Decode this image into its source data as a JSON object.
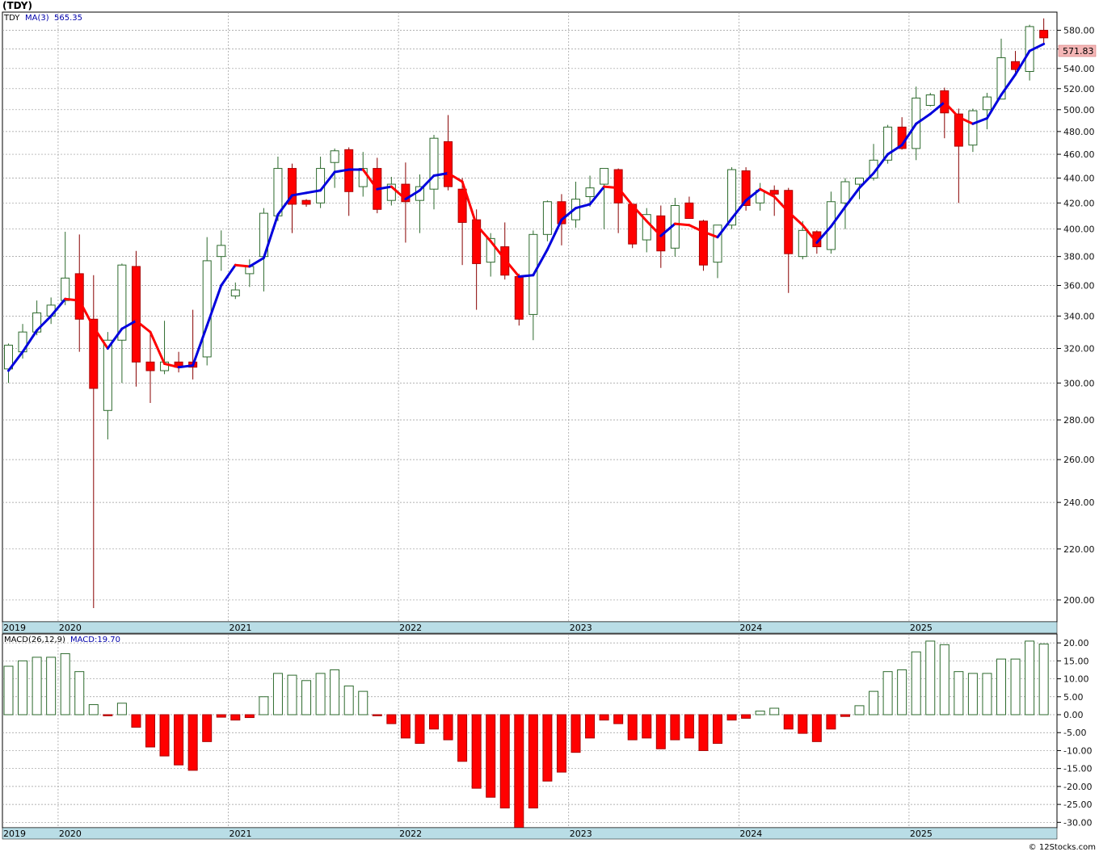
{
  "title": "(TDY)",
  "watermark": "© 12Stocks.com",
  "colors": {
    "up_candle": "#2d6a2d",
    "down_candle": "#ff0000",
    "ma_up": "#0000dd",
    "ma_down": "#ff0000",
    "grid": "#999999",
    "year_band": "#b9dde6",
    "last_price_box": "#f4b6b6"
  },
  "chart_data": [
    {
      "type": "candlestick",
      "interval": "monthly",
      "symbol": "TDY",
      "legend": {
        "symbol": "TDY",
        "ma_label": "MA(3)",
        "ma_value": "565.35"
      },
      "scale": "log",
      "ylim": [
        192,
        600
      ],
      "y_ticks": [
        200,
        220,
        240,
        260,
        280,
        300,
        320,
        340,
        360,
        380,
        400,
        420,
        440,
        460,
        480,
        500,
        520,
        540,
        560,
        580
      ],
      "y_tick_labels": [
        "200.00",
        "220.00",
        "240.00",
        "260.00",
        "280.00",
        "300.00",
        "320.00",
        "340.00",
        "360.00",
        "380.00",
        "400.00",
        "420.00",
        "440.00",
        "460.00",
        "480.00",
        "500.00",
        "520.00",
        "540.00",
        "560.00",
        "580.00"
      ],
      "last_price": "571.83",
      "year_labels": [
        {
          "label": "2019",
          "index": -0.5
        },
        {
          "label": "2020",
          "index": 3.5
        },
        {
          "label": "2021",
          "index": 15.5
        },
        {
          "label": "2022",
          "index": 27.5
        },
        {
          "label": "2023",
          "index": 39.5
        },
        {
          "label": "2024",
          "index": 51.5
        },
        {
          "label": "2025",
          "index": 63.5
        }
      ],
      "candles": [
        {
          "o": 308,
          "h": 323,
          "l": 300,
          "c": 322
        },
        {
          "o": 318,
          "h": 335,
          "l": 314,
          "c": 330
        },
        {
          "o": 330,
          "h": 350,
          "l": 328,
          "c": 342
        },
        {
          "o": 340,
          "h": 352,
          "l": 335,
          "c": 347
        },
        {
          "o": 350,
          "h": 398,
          "l": 347,
          "c": 365
        },
        {
          "o": 368,
          "h": 396,
          "l": 318,
          "c": 338
        },
        {
          "o": 338,
          "h": 367,
          "l": 197,
          "c": 297
        },
        {
          "o": 285,
          "h": 330,
          "l": 270,
          "c": 325
        },
        {
          "o": 325,
          "h": 375,
          "l": 300,
          "c": 374
        },
        {
          "o": 373,
          "h": 384,
          "l": 298,
          "c": 312
        },
        {
          "o": 312,
          "h": 330,
          "l": 289,
          "c": 307
        },
        {
          "o": 307,
          "h": 337,
          "l": 305,
          "c": 312
        },
        {
          "o": 312,
          "h": 318,
          "l": 306,
          "c": 309
        },
        {
          "o": 312,
          "h": 344,
          "l": 302,
          "c": 309
        },
        {
          "o": 315,
          "h": 394,
          "l": 310,
          "c": 377
        },
        {
          "o": 380,
          "h": 399,
          "l": 370,
          "c": 388
        },
        {
          "o": 353,
          "h": 362,
          "l": 351,
          "c": 357
        },
        {
          "o": 368,
          "h": 378,
          "l": 359,
          "c": 373
        },
        {
          "o": 380,
          "h": 416,
          "l": 356,
          "c": 412
        },
        {
          "o": 410,
          "h": 458,
          "l": 406,
          "c": 448
        },
        {
          "o": 448,
          "h": 452,
          "l": 397,
          "c": 419
        },
        {
          "o": 422,
          "h": 423,
          "l": 417,
          "c": 419
        },
        {
          "o": 420,
          "h": 458,
          "l": 416,
          "c": 448
        },
        {
          "o": 453,
          "h": 465,
          "l": 432,
          "c": 463
        },
        {
          "o": 464,
          "h": 466,
          "l": 410,
          "c": 429
        },
        {
          "o": 433,
          "h": 462,
          "l": 425,
          "c": 448
        },
        {
          "o": 448,
          "h": 457,
          "l": 412,
          "c": 415
        },
        {
          "o": 422,
          "h": 441,
          "l": 418,
          "c": 435
        },
        {
          "o": 435,
          "h": 453,
          "l": 390,
          "c": 421
        },
        {
          "o": 422,
          "h": 443,
          "l": 397,
          "c": 433
        },
        {
          "o": 431,
          "h": 477,
          "l": 415,
          "c": 474
        },
        {
          "o": 471,
          "h": 495,
          "l": 430,
          "c": 433
        },
        {
          "o": 431,
          "h": 440,
          "l": 374,
          "c": 405
        },
        {
          "o": 407,
          "h": 415,
          "l": 344,
          "c": 375
        },
        {
          "o": 376,
          "h": 397,
          "l": 366,
          "c": 393
        },
        {
          "o": 387,
          "h": 405,
          "l": 364,
          "c": 367
        },
        {
          "o": 366,
          "h": 368,
          "l": 334,
          "c": 338
        },
        {
          "o": 341,
          "h": 399,
          "l": 325,
          "c": 396
        },
        {
          "o": 396,
          "h": 422,
          "l": 391,
          "c": 421
        },
        {
          "o": 421,
          "h": 427,
          "l": 388,
          "c": 404
        },
        {
          "o": 407,
          "h": 437,
          "l": 401,
          "c": 423
        },
        {
          "o": 425,
          "h": 442,
          "l": 417,
          "c": 432
        },
        {
          "o": 435,
          "h": 448,
          "l": 400,
          "c": 448
        },
        {
          "o": 447,
          "h": 448,
          "l": 397,
          "c": 420
        },
        {
          "o": 419,
          "h": 419,
          "l": 386,
          "c": 389
        },
        {
          "o": 392,
          "h": 416,
          "l": 383,
          "c": 411
        },
        {
          "o": 410,
          "h": 418,
          "l": 372,
          "c": 384
        },
        {
          "o": 386,
          "h": 424,
          "l": 380,
          "c": 418
        },
        {
          "o": 420,
          "h": 425,
          "l": 408,
          "c": 408
        },
        {
          "o": 406,
          "h": 407,
          "l": 370,
          "c": 374
        },
        {
          "o": 376,
          "h": 402,
          "l": 365,
          "c": 403
        },
        {
          "o": 403,
          "h": 449,
          "l": 400,
          "c": 447
        },
        {
          "o": 446,
          "h": 449,
          "l": 414,
          "c": 418
        },
        {
          "o": 420,
          "h": 436,
          "l": 414,
          "c": 430
        },
        {
          "o": 430,
          "h": 434,
          "l": 410,
          "c": 427
        },
        {
          "o": 430,
          "h": 432,
          "l": 355,
          "c": 382
        },
        {
          "o": 380,
          "h": 406,
          "l": 378,
          "c": 399
        },
        {
          "o": 398,
          "h": 399,
          "l": 382,
          "c": 387
        },
        {
          "o": 385,
          "h": 429,
          "l": 382,
          "c": 421
        },
        {
          "o": 420,
          "h": 440,
          "l": 400,
          "c": 437
        },
        {
          "o": 435,
          "h": 440,
          "l": 423,
          "c": 440
        },
        {
          "o": 440,
          "h": 469,
          "l": 438,
          "c": 455
        },
        {
          "o": 455,
          "h": 486,
          "l": 452,
          "c": 484
        },
        {
          "o": 484,
          "h": 493,
          "l": 464,
          "c": 465
        },
        {
          "o": 465,
          "h": 522,
          "l": 455,
          "c": 511
        },
        {
          "o": 504,
          "h": 516,
          "l": 503,
          "c": 514
        },
        {
          "o": 518,
          "h": 521,
          "l": 474,
          "c": 497
        },
        {
          "o": 496,
          "h": 501,
          "l": 420,
          "c": 467
        },
        {
          "o": 468,
          "h": 501,
          "l": 462,
          "c": 499
        },
        {
          "o": 500,
          "h": 516,
          "l": 482,
          "c": 512
        },
        {
          "o": 510,
          "h": 571,
          "l": 510,
          "c": 551
        },
        {
          "o": 547,
          "h": 558,
          "l": 536,
          "c": 539
        },
        {
          "o": 537,
          "h": 586,
          "l": 528,
          "c": 584
        },
        {
          "o": 580,
          "h": 593,
          "l": 566,
          "c": 571.83
        }
      ],
      "ma3": [
        307,
        318,
        331,
        340,
        351,
        350,
        333,
        320,
        332,
        337,
        330,
        311,
        309,
        310,
        334,
        360,
        374,
        373,
        379,
        411,
        426,
        428,
        430,
        445,
        447,
        447,
        431,
        433,
        423,
        430,
        442,
        444,
        437,
        403,
        391,
        378,
        366,
        367,
        385,
        407,
        416,
        419,
        433,
        432,
        418,
        406,
        395,
        404,
        403,
        398,
        394,
        408,
        422,
        431,
        425,
        413,
        403,
        390,
        402,
        417,
        432,
        444,
        460,
        468,
        487,
        496,
        507,
        493,
        487,
        492,
        514,
        534,
        558,
        565.35
      ]
    },
    {
      "type": "bar",
      "title": "MACD(26,12,9)",
      "legend": {
        "label": "MACD:19.70"
      },
      "ylim": [
        -31.5,
        22.5
      ],
      "y_ticks": [
        20,
        15,
        10,
        5,
        0,
        -5,
        -10,
        -15,
        -20,
        -25,
        -30
      ],
      "y_tick_labels": [
        "20.00",
        "15.00",
        "10.00",
        "5.00",
        "0.00",
        "-5.00",
        "-10.00",
        "-15.00",
        "-20.00",
        "-25.00",
        "-30.00"
      ],
      "values": [
        13.5,
        15,
        16,
        16,
        17,
        12,
        2.8,
        -0.3,
        3.2,
        -3.5,
        -9,
        -11.5,
        -14,
        -15.5,
        -7.5,
        -0.7,
        -1.5,
        -0.8,
        5,
        11.5,
        11,
        9.5,
        11.5,
        12.5,
        8,
        6.5,
        -0.3,
        -2.5,
        -6.5,
        -8,
        -4,
        -7,
        -13,
        -20.5,
        -23,
        -26,
        -31.5,
        -26,
        -18.5,
        -16,
        -10.5,
        -6.5,
        -1.5,
        -2.5,
        -7,
        -6.5,
        -9.5,
        -7,
        -6.5,
        -10,
        -8,
        -1.5,
        -1,
        1,
        1.8,
        -4,
        -5.2,
        -7.5,
        -4,
        -0.5,
        2.5,
        6.5,
        12,
        12.5,
        17.5,
        20.5,
        19.5,
        12,
        11.5,
        11.5,
        15.5,
        15.5,
        20.5,
        19.7
      ]
    }
  ]
}
